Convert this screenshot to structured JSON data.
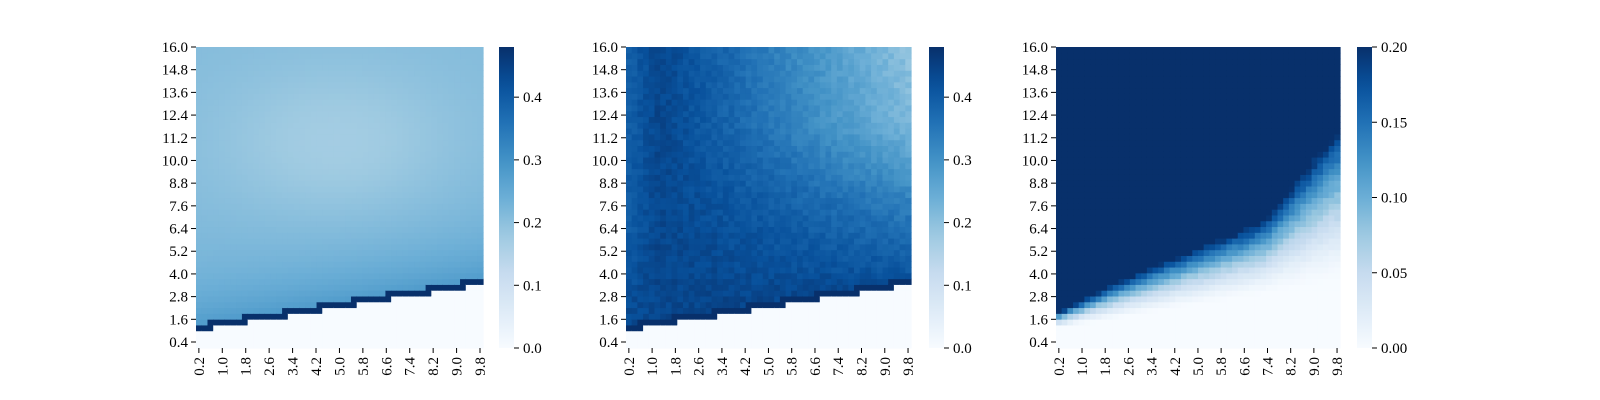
{
  "figure": {
    "panels": [
      {
        "id": "left",
        "type": "heatmap",
        "xticks": [
          "0.2",
          "1.0",
          "1.8",
          "2.6",
          "3.4",
          "4.2",
          "5.0",
          "5.8",
          "6.6",
          "7.4",
          "8.2",
          "9.0",
          "9.8"
        ],
        "yticks": [
          "0.4",
          "1.6",
          "2.8",
          "4.0",
          "5.2",
          "6.4",
          "7.6",
          "8.8",
          "10.0",
          "11.2",
          "12.4",
          "13.6",
          "14.8",
          "16.0"
        ],
        "colorbar": {
          "vmin": 0.0,
          "vmax": 0.48,
          "ticks": [
            {
              "value": 0.0,
              "label": "0.0"
            },
            {
              "value": 0.1,
              "label": "0.1"
            },
            {
              "value": 0.2,
              "label": "0.2"
            },
            {
              "value": 0.3,
              "label": "0.3"
            },
            {
              "value": 0.4,
              "label": "0.4"
            }
          ]
        }
      },
      {
        "id": "middle",
        "type": "heatmap",
        "xticks": [
          "0.2",
          "1.0",
          "1.8",
          "2.6",
          "3.4",
          "4.2",
          "5.0",
          "5.8",
          "6.6",
          "7.4",
          "8.2",
          "9.0",
          "9.8"
        ],
        "yticks": [
          "0.4",
          "1.6",
          "2.8",
          "4.0",
          "5.2",
          "6.4",
          "7.6",
          "8.8",
          "10.0",
          "11.2",
          "12.4",
          "13.6",
          "14.8",
          "16.0"
        ],
        "colorbar": {
          "vmin": 0.0,
          "vmax": 0.48,
          "ticks": [
            {
              "value": 0.0,
              "label": "0.0"
            },
            {
              "value": 0.1,
              "label": "0.1"
            },
            {
              "value": 0.2,
              "label": "0.2"
            },
            {
              "value": 0.3,
              "label": "0.3"
            },
            {
              "value": 0.4,
              "label": "0.4"
            }
          ]
        }
      },
      {
        "id": "right",
        "type": "heatmap",
        "xticks": [
          "0.2",
          "1.0",
          "1.8",
          "2.6",
          "3.4",
          "4.2",
          "5.0",
          "5.8",
          "6.6",
          "7.4",
          "8.2",
          "9.0",
          "9.8"
        ],
        "yticks": [
          "0.4",
          "1.6",
          "2.8",
          "4.0",
          "5.2",
          "6.4",
          "7.6",
          "8.8",
          "10.0",
          "11.2",
          "12.4",
          "13.6",
          "14.8",
          "16.0"
        ],
        "colorbar": {
          "vmin": 0.0,
          "vmax": 0.2,
          "ticks": [
            {
              "value": 0.0,
              "label": "0.00"
            },
            {
              "value": 0.05,
              "label": "0.05"
            },
            {
              "value": 0.1,
              "label": "0.10"
            },
            {
              "value": 0.15,
              "label": "0.15"
            },
            {
              "value": 0.2,
              "label": "0.20"
            }
          ]
        }
      }
    ]
  },
  "chart_data": [
    {
      "type": "heatmap",
      "colormap": "Blues",
      "x_range": [
        0.2,
        10.0
      ],
      "y_range": [
        0.4,
        16.0
      ],
      "xticks": [
        "0.2",
        "1.0",
        "1.8",
        "2.6",
        "3.4",
        "4.2",
        "5.0",
        "5.8",
        "6.6",
        "7.4",
        "8.2",
        "9.0",
        "9.8"
      ],
      "yticks": [
        "0.4",
        "1.6",
        "2.8",
        "4.0",
        "5.2",
        "6.4",
        "7.6",
        "8.8",
        "10.0",
        "11.2",
        "12.4",
        "13.6",
        "14.8",
        "16.0"
      ],
      "colorbar_range": [
        0.0,
        0.48
      ],
      "zero_region_boundary": {
        "x": [
          0.2,
          10.0
        ],
        "y": [
          1.3,
          3.7
        ]
      },
      "boundary_value": 0.48,
      "surface_samples": [
        {
          "x": 0.2,
          "y": 2.0,
          "value": 0.28
        },
        {
          "x": 5.0,
          "y": 3.2,
          "value": 0.36
        },
        {
          "x": 0.2,
          "y": 16.0,
          "value": 0.2
        },
        {
          "x": 5.0,
          "y": 10.0,
          "value": 0.17
        },
        {
          "x": 9.8,
          "y": 16.0,
          "value": 0.2
        },
        {
          "x": 9.8,
          "y": 5.0,
          "value": 0.3
        }
      ]
    },
    {
      "type": "heatmap",
      "colormap": "Blues",
      "x_range": [
        0.2,
        10.0
      ],
      "y_range": [
        0.4,
        16.0
      ],
      "xticks": [
        "0.2",
        "1.0",
        "1.8",
        "2.6",
        "3.4",
        "4.2",
        "5.0",
        "5.8",
        "6.6",
        "7.4",
        "8.2",
        "9.0",
        "9.8"
      ],
      "yticks": [
        "0.4",
        "1.6",
        "2.8",
        "4.0",
        "5.2",
        "6.4",
        "7.6",
        "8.8",
        "10.0",
        "11.2",
        "12.4",
        "13.6",
        "14.8",
        "16.0"
      ],
      "colorbar_range": [
        0.0,
        0.48
      ],
      "zero_region_boundary": {
        "x": [
          0.2,
          10.0
        ],
        "y": [
          1.3,
          3.7
        ]
      },
      "boundary_value": 0.48,
      "surface_samples": [
        {
          "x": 0.2,
          "y": 2.0,
          "value": 0.32
        },
        {
          "x": 0.2,
          "y": 16.0,
          "value": 0.36
        },
        {
          "x": 1.5,
          "y": 8.0,
          "value": 0.44
        },
        {
          "x": 5.0,
          "y": 6.0,
          "value": 0.42
        },
        {
          "x": 9.8,
          "y": 16.0,
          "value": 0.25
        },
        {
          "x": 9.8,
          "y": 5.0,
          "value": 0.4
        }
      ]
    },
    {
      "type": "heatmap",
      "colormap": "Blues",
      "x_range": [
        0.2,
        10.0
      ],
      "y_range": [
        0.4,
        16.0
      ],
      "xticks": [
        "0.2",
        "1.0",
        "1.8",
        "2.6",
        "3.4",
        "4.2",
        "5.0",
        "5.8",
        "6.6",
        "7.4",
        "8.2",
        "9.0",
        "9.8"
      ],
      "yticks": [
        "0.4",
        "1.6",
        "2.8",
        "4.0",
        "5.2",
        "6.4",
        "7.6",
        "8.8",
        "10.0",
        "11.2",
        "12.4",
        "13.6",
        "14.8",
        "16.0"
      ],
      "colorbar_range": [
        0.0,
        0.2
      ],
      "saturation_boundary": {
        "x": [
          0.2,
          2.6,
          5.0,
          7.4,
          9.8
        ],
        "y": [
          2.2,
          4.0,
          5.5,
          7.0,
          11.5
        ]
      },
      "zero_boundary": {
        "x": [
          0.2,
          5.0,
          9.8
        ],
        "y": [
          1.4,
          2.6,
          3.8
        ]
      },
      "saturated_value": 0.2
    }
  ]
}
